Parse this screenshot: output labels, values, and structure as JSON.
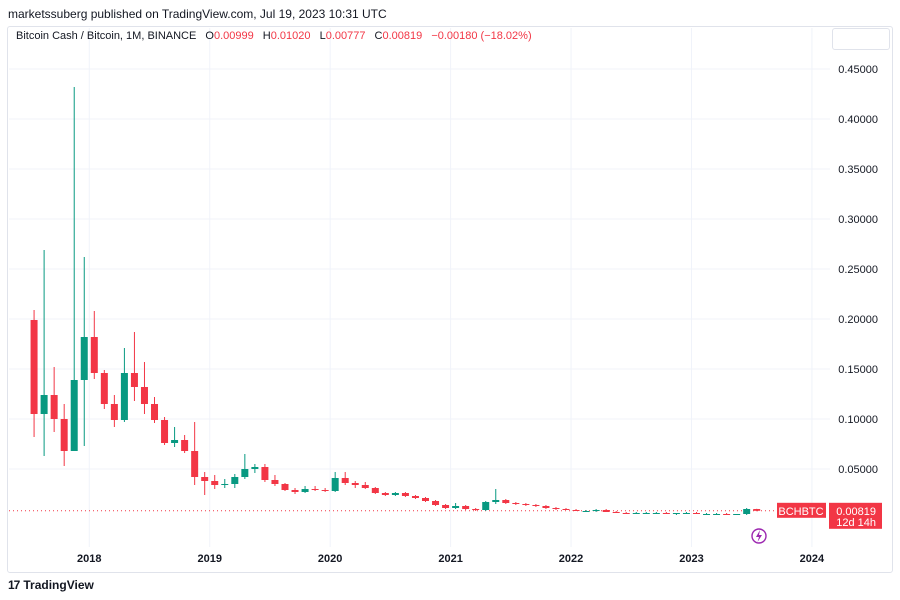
{
  "header": {
    "published": "marketssuberg published on TradingView.com, Jul 19, 2023 10:31 UTC"
  },
  "legend": {
    "symbol": "Bitcoin Cash / Bitcoin, 1M, BINANCE",
    "o_label": "O",
    "o_value": "0.00999",
    "h_label": "H",
    "h_value": "0.01020",
    "l_label": "L",
    "l_value": "0.00777",
    "c_label": "C",
    "c_value": "0.00819",
    "change": "−0.00180 (−18.02%)"
  },
  "price_tag": {
    "symbol": "BCHBTC",
    "price": "0.00819",
    "countdown": "12d 14h"
  },
  "footer": {
    "brand": "TradingView",
    "mark": "17"
  },
  "colors": {
    "up": "#26a69a",
    "up_dark": "#089981",
    "down": "#f23645",
    "grid": "#f0f3fa",
    "flash": "#9c27b0"
  },
  "icons": {
    "flash": "lightning-bolt-icon"
  },
  "chart_data": {
    "type": "candlestick",
    "title": "",
    "xlabel": "",
    "ylabel": "",
    "y_ticks": [
      "0.45000",
      "0.40000",
      "0.35000",
      "0.30000",
      "0.25000",
      "0.20000",
      "0.15000",
      "0.10000",
      "0.05000"
    ],
    "x_ticks": [
      "2018",
      "2019",
      "2020",
      "2021",
      "2022",
      "2023",
      "2024"
    ],
    "ylim": [
      -0.023,
      0.471
    ],
    "xlim": [
      "2017-05",
      "2024-03"
    ],
    "grid": true,
    "legend_position": "top-left",
    "last_price": 0.00819,
    "candles": [
      {
        "t": "2017-07",
        "o": 0.199,
        "h": 0.209,
        "l": 0.082,
        "c": 0.105
      },
      {
        "t": "2017-08",
        "o": 0.105,
        "h": 0.269,
        "l": 0.063,
        "c": 0.124
      },
      {
        "t": "2017-09",
        "o": 0.124,
        "h": 0.152,
        "l": 0.087,
        "c": 0.1
      },
      {
        "t": "2017-10",
        "o": 0.1,
        "h": 0.115,
        "l": 0.053,
        "c": 0.068
      },
      {
        "t": "2017-11",
        "o": 0.068,
        "h": 0.432,
        "l": 0.068,
        "c": 0.139
      },
      {
        "t": "2017-12",
        "o": 0.139,
        "h": 0.262,
        "l": 0.073,
        "c": 0.182
      },
      {
        "t": "2018-01",
        "o": 0.182,
        "h": 0.208,
        "l": 0.14,
        "c": 0.146
      },
      {
        "t": "2018-02",
        "o": 0.146,
        "h": 0.149,
        "l": 0.11,
        "c": 0.115
      },
      {
        "t": "2018-03",
        "o": 0.115,
        "h": 0.124,
        "l": 0.092,
        "c": 0.099
      },
      {
        "t": "2018-04",
        "o": 0.099,
        "h": 0.171,
        "l": 0.097,
        "c": 0.146
      },
      {
        "t": "2018-05",
        "o": 0.146,
        "h": 0.187,
        "l": 0.118,
        "c": 0.132
      },
      {
        "t": "2018-06",
        "o": 0.132,
        "h": 0.157,
        "l": 0.105,
        "c": 0.115
      },
      {
        "t": "2018-07",
        "o": 0.115,
        "h": 0.122,
        "l": 0.096,
        "c": 0.099
      },
      {
        "t": "2018-08",
        "o": 0.099,
        "h": 0.102,
        "l": 0.074,
        "c": 0.076
      },
      {
        "t": "2018-09",
        "o": 0.076,
        "h": 0.092,
        "l": 0.072,
        "c": 0.079
      },
      {
        "t": "2018-10",
        "o": 0.079,
        "h": 0.084,
        "l": 0.066,
        "c": 0.068
      },
      {
        "t": "2018-11",
        "o": 0.068,
        "h": 0.097,
        "l": 0.034,
        "c": 0.042
      },
      {
        "t": "2018-12",
        "o": 0.042,
        "h": 0.047,
        "l": 0.024,
        "c": 0.038
      },
      {
        "t": "2019-01",
        "o": 0.038,
        "h": 0.044,
        "l": 0.03,
        "c": 0.034
      },
      {
        "t": "2019-02",
        "o": 0.034,
        "h": 0.04,
        "l": 0.031,
        "c": 0.035
      },
      {
        "t": "2019-03",
        "o": 0.035,
        "h": 0.045,
        "l": 0.031,
        "c": 0.042
      },
      {
        "t": "2019-04",
        "o": 0.042,
        "h": 0.065,
        "l": 0.04,
        "c": 0.05
      },
      {
        "t": "2019-05",
        "o": 0.05,
        "h": 0.055,
        "l": 0.046,
        "c": 0.052
      },
      {
        "t": "2019-06",
        "o": 0.052,
        "h": 0.055,
        "l": 0.037,
        "c": 0.039
      },
      {
        "t": "2019-07",
        "o": 0.039,
        "h": 0.044,
        "l": 0.033,
        "c": 0.035
      },
      {
        "t": "2019-08",
        "o": 0.035,
        "h": 0.036,
        "l": 0.028,
        "c": 0.029
      },
      {
        "t": "2019-09",
        "o": 0.029,
        "h": 0.031,
        "l": 0.025,
        "c": 0.027
      },
      {
        "t": "2019-10",
        "o": 0.027,
        "h": 0.033,
        "l": 0.026,
        "c": 0.03
      },
      {
        "t": "2019-11",
        "o": 0.03,
        "h": 0.033,
        "l": 0.028,
        "c": 0.029
      },
      {
        "t": "2019-12",
        "o": 0.029,
        "h": 0.031,
        "l": 0.027,
        "c": 0.028
      },
      {
        "t": "2020-01",
        "o": 0.028,
        "h": 0.047,
        "l": 0.027,
        "c": 0.041
      },
      {
        "t": "2020-02",
        "o": 0.041,
        "h": 0.047,
        "l": 0.034,
        "c": 0.036
      },
      {
        "t": "2020-03",
        "o": 0.036,
        "h": 0.038,
        "l": 0.031,
        "c": 0.034
      },
      {
        "t": "2020-04",
        "o": 0.034,
        "h": 0.037,
        "l": 0.03,
        "c": 0.031
      },
      {
        "t": "2020-05",
        "o": 0.031,
        "h": 0.032,
        "l": 0.025,
        "c": 0.026
      },
      {
        "t": "2020-06",
        "o": 0.026,
        "h": 0.027,
        "l": 0.023,
        "c": 0.024
      },
      {
        "t": "2020-07",
        "o": 0.024,
        "h": 0.027,
        "l": 0.023,
        "c": 0.026
      },
      {
        "t": "2020-08",
        "o": 0.026,
        "h": 0.027,
        "l": 0.022,
        "c": 0.023
      },
      {
        "t": "2020-09",
        "o": 0.023,
        "h": 0.024,
        "l": 0.02,
        "c": 0.021
      },
      {
        "t": "2020-10",
        "o": 0.021,
        "h": 0.022,
        "l": 0.017,
        "c": 0.018
      },
      {
        "t": "2020-11",
        "o": 0.018,
        "h": 0.019,
        "l": 0.013,
        "c": 0.014
      },
      {
        "t": "2020-12",
        "o": 0.014,
        "h": 0.015,
        "l": 0.01,
        "c": 0.011
      },
      {
        "t": "2021-01",
        "o": 0.011,
        "h": 0.016,
        "l": 0.01,
        "c": 0.013
      },
      {
        "t": "2021-02",
        "o": 0.013,
        "h": 0.014,
        "l": 0.009,
        "c": 0.01
      },
      {
        "t": "2021-03",
        "o": 0.01,
        "h": 0.011,
        "l": 0.008,
        "c": 0.009
      },
      {
        "t": "2021-04",
        "o": 0.009,
        "h": 0.018,
        "l": 0.008,
        "c": 0.017
      },
      {
        "t": "2021-05",
        "o": 0.017,
        "h": 0.03,
        "l": 0.015,
        "c": 0.019
      },
      {
        "t": "2021-06",
        "o": 0.019,
        "h": 0.02,
        "l": 0.015,
        "c": 0.016
      },
      {
        "t": "2021-07",
        "o": 0.016,
        "h": 0.017,
        "l": 0.014,
        "c": 0.015
      },
      {
        "t": "2021-08",
        "o": 0.015,
        "h": 0.016,
        "l": 0.013,
        "c": 0.014
      },
      {
        "t": "2021-09",
        "o": 0.014,
        "h": 0.015,
        "l": 0.012,
        "c": 0.013
      },
      {
        "t": "2021-10",
        "o": 0.013,
        "h": 0.014,
        "l": 0.01,
        "c": 0.011
      },
      {
        "t": "2021-11",
        "o": 0.011,
        "h": 0.012,
        "l": 0.009,
        "c": 0.01
      },
      {
        "t": "2021-12",
        "o": 0.01,
        "h": 0.011,
        "l": 0.009,
        "c": 0.009
      },
      {
        "t": "2022-01",
        "o": 0.009,
        "h": 0.01,
        "l": 0.008,
        "c": 0.008
      },
      {
        "t": "2022-02",
        "o": 0.008,
        "h": 0.009,
        "l": 0.007,
        "c": 0.008
      },
      {
        "t": "2022-03",
        "o": 0.008,
        "h": 0.01,
        "l": 0.007,
        "c": 0.009
      },
      {
        "t": "2022-04",
        "o": 0.009,
        "h": 0.01,
        "l": 0.007,
        "c": 0.007
      },
      {
        "t": "2022-05",
        "o": 0.007,
        "h": 0.008,
        "l": 0.006,
        "c": 0.006
      },
      {
        "t": "2022-06",
        "o": 0.006,
        "h": 0.007,
        "l": 0.005,
        "c": 0.005
      },
      {
        "t": "2022-07",
        "o": 0.005,
        "h": 0.007,
        "l": 0.005,
        "c": 0.006
      },
      {
        "t": "2022-08",
        "o": 0.006,
        "h": 0.007,
        "l": 0.005,
        "c": 0.006
      },
      {
        "t": "2022-09",
        "o": 0.006,
        "h": 0.007,
        "l": 0.005,
        "c": 0.006
      },
      {
        "t": "2022-10",
        "o": 0.006,
        "h": 0.007,
        "l": 0.005,
        "c": 0.005
      },
      {
        "t": "2022-11",
        "o": 0.005,
        "h": 0.006,
        "l": 0.004,
        "c": 0.006
      },
      {
        "t": "2022-12",
        "o": 0.006,
        "h": 0.007,
        "l": 0.005,
        "c": 0.006
      },
      {
        "t": "2023-01",
        "o": 0.006,
        "h": 0.007,
        "l": 0.005,
        "c": 0.005
      },
      {
        "t": "2023-02",
        "o": 0.005,
        "h": 0.006,
        "l": 0.004,
        "c": 0.005
      },
      {
        "t": "2023-03",
        "o": 0.005,
        "h": 0.006,
        "l": 0.004,
        "c": 0.005
      },
      {
        "t": "2023-04",
        "o": 0.005,
        "h": 0.006,
        "l": 0.004,
        "c": 0.004
      },
      {
        "t": "2023-05",
        "o": 0.004,
        "h": 0.005,
        "l": 0.004,
        "c": 0.005
      },
      {
        "t": "2023-06",
        "o": 0.005,
        "h": 0.011,
        "l": 0.004,
        "c": 0.01
      },
      {
        "t": "2023-07",
        "o": 0.00999,
        "h": 0.0102,
        "l": 0.00777,
        "c": 0.00819
      }
    ]
  }
}
